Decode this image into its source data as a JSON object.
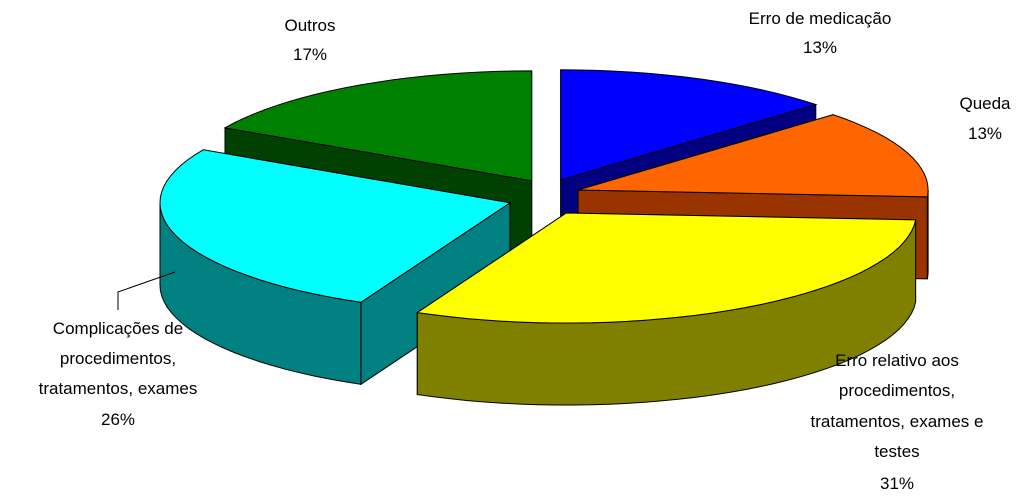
{
  "chart_data": {
    "type": "pie",
    "style": "3d-exploded",
    "title": "",
    "legend": "none",
    "slices": [
      {
        "name": "Erro de medicação",
        "value": 13,
        "label": "13%",
        "color": "#0000FF",
        "side_color": "#000080"
      },
      {
        "name": "Queda",
        "value": 13,
        "label": "13%",
        "color": "#FF6600",
        "side_color": "#993300"
      },
      {
        "name": "Erro relativo aos procedimentos, tratamentos, exames e testes",
        "label_lines": [
          "Erro relativo aos",
          "procedimentos,",
          "tratamentos, exames e",
          "testes"
        ],
        "value": 31,
        "label": "31%",
        "color": "#FFFF00",
        "side_color": "#808000"
      },
      {
        "name": "Complicações de procedimentos, tratamentos, exames",
        "label_lines": [
          "Complicações de",
          "procedimentos,",
          "tratamentos, exames"
        ],
        "value": 26,
        "label": "26%",
        "color": "#00FFFF",
        "side_color": "#008080"
      },
      {
        "name": "Outros",
        "value": 17,
        "label": "17%",
        "color": "#008000",
        "side_color": "#004000"
      }
    ]
  }
}
